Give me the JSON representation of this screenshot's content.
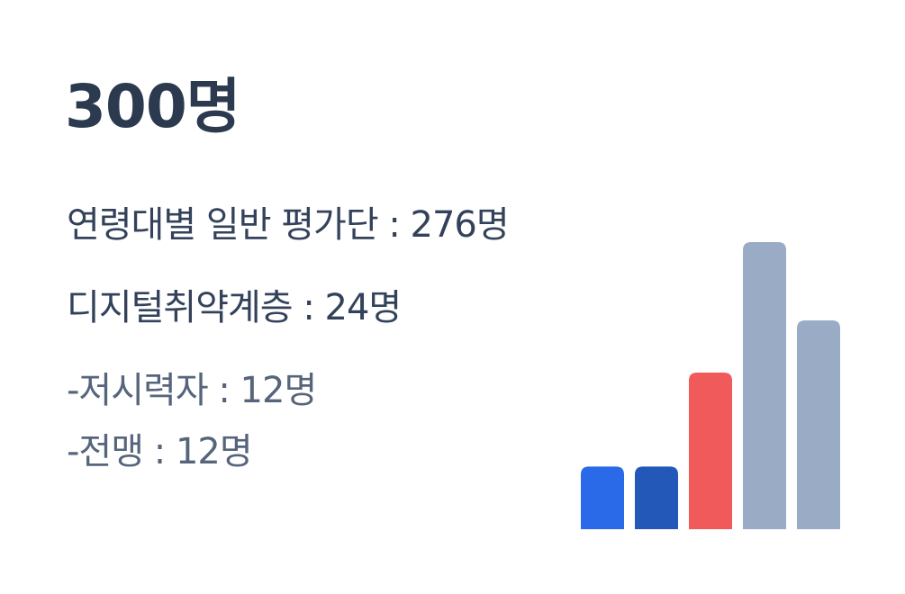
{
  "total": "300명",
  "lines": {
    "general": "연령대별 일반 평가단 : 276명",
    "digital": "디지털취약계층 : 24명",
    "low_vision": "-저시력자 : 12명",
    "blind": "-전맹 : 12명"
  },
  "chart_data": {
    "type": "bar",
    "values": [
      12,
      12,
      30,
      55,
      40
    ],
    "colors": [
      "#2a6ae8",
      "#2458b8",
      "#f05a5a",
      "#9aabc6",
      "#9aabc6"
    ],
    "ylim": [
      0,
      60
    ]
  }
}
